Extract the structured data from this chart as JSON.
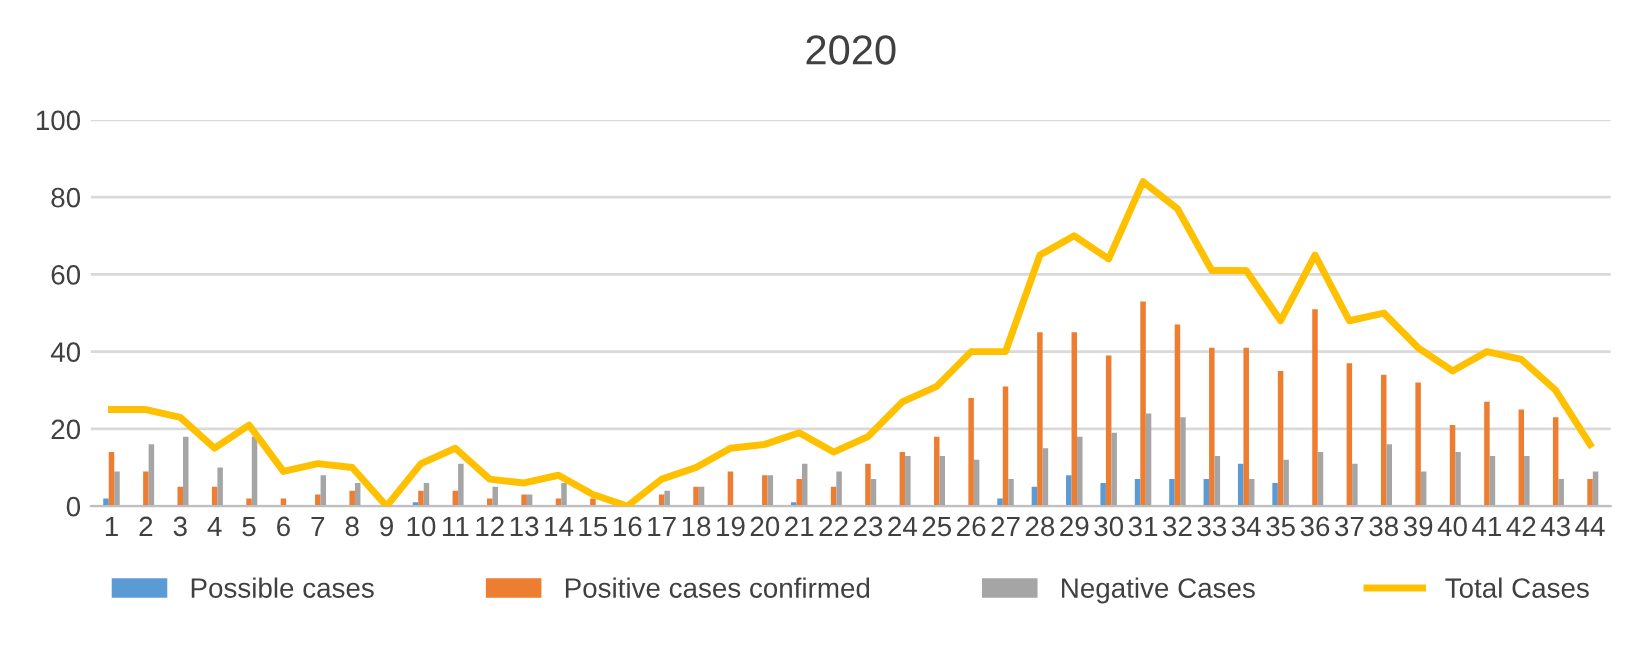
{
  "chart_data": {
    "type": "bar",
    "title": "2020",
    "categories": [
      "1",
      "2",
      "3",
      "4",
      "5",
      "6",
      "7",
      "8",
      "9",
      "10",
      "11",
      "12",
      "13",
      "14",
      "15",
      "16",
      "17",
      "18",
      "19",
      "20",
      "21",
      "22",
      "23",
      "24",
      "25",
      "26",
      "27",
      "28",
      "29",
      "30",
      "31",
      "32",
      "33",
      "34",
      "35",
      "36",
      "37",
      "38",
      "39",
      "40",
      "41",
      "42",
      "43",
      "44"
    ],
    "series": [
      {
        "name": "Possible cases",
        "color": "#5b9bd5",
        "values": [
          2,
          0,
          0,
          0,
          0,
          0,
          0,
          0,
          0,
          1,
          0,
          0,
          0,
          0,
          0,
          0,
          0,
          0,
          0,
          0,
          1,
          0,
          0,
          0,
          0,
          0,
          2,
          5,
          8,
          6,
          7,
          7,
          7,
          11,
          6,
          0,
          0,
          0,
          0,
          0,
          0,
          0,
          0,
          0
        ]
      },
      {
        "name": "Positive cases confirmed",
        "color": "#ed7d31",
        "values": [
          14,
          9,
          5,
          5,
          2,
          2,
          3,
          4,
          0,
          4,
          4,
          2,
          3,
          2,
          2,
          0,
          3,
          5,
          9,
          8,
          7,
          5,
          11,
          14,
          18,
          28,
          31,
          45,
          45,
          39,
          53,
          47,
          41,
          41,
          35,
          51,
          37,
          34,
          32,
          21,
          27,
          25,
          23,
          7
        ]
      },
      {
        "name": "Negative Cases",
        "color": "#a5a5a5",
        "values": [
          9,
          16,
          18,
          10,
          18,
          0,
          8,
          6,
          0,
          6,
          11,
          5,
          3,
          6,
          0,
          0,
          4,
          5,
          0,
          8,
          11,
          9,
          7,
          13,
          13,
          12,
          7,
          15,
          18,
          19,
          24,
          23,
          13,
          7,
          12,
          14,
          11,
          16,
          9,
          14,
          13,
          13,
          7,
          9
        ]
      },
      {
        "name": "Total Cases",
        "type": "line",
        "color": "#ffc000",
        "values": [
          25,
          25,
          23,
          15,
          21,
          9,
          11,
          10,
          0,
          11,
          15,
          7,
          6,
          8,
          3,
          0,
          7,
          10,
          15,
          16,
          19,
          14,
          18,
          27,
          31,
          40,
          40,
          65,
          70,
          64,
          84,
          77,
          61,
          61,
          48,
          65,
          48,
          50,
          41,
          35,
          40,
          38,
          30,
          16
        ]
      }
    ],
    "ylim": [
      0,
      100
    ],
    "yticks": [
      0,
      20,
      40,
      60,
      80,
      100
    ],
    "grid": "y",
    "legend": "bottom"
  }
}
